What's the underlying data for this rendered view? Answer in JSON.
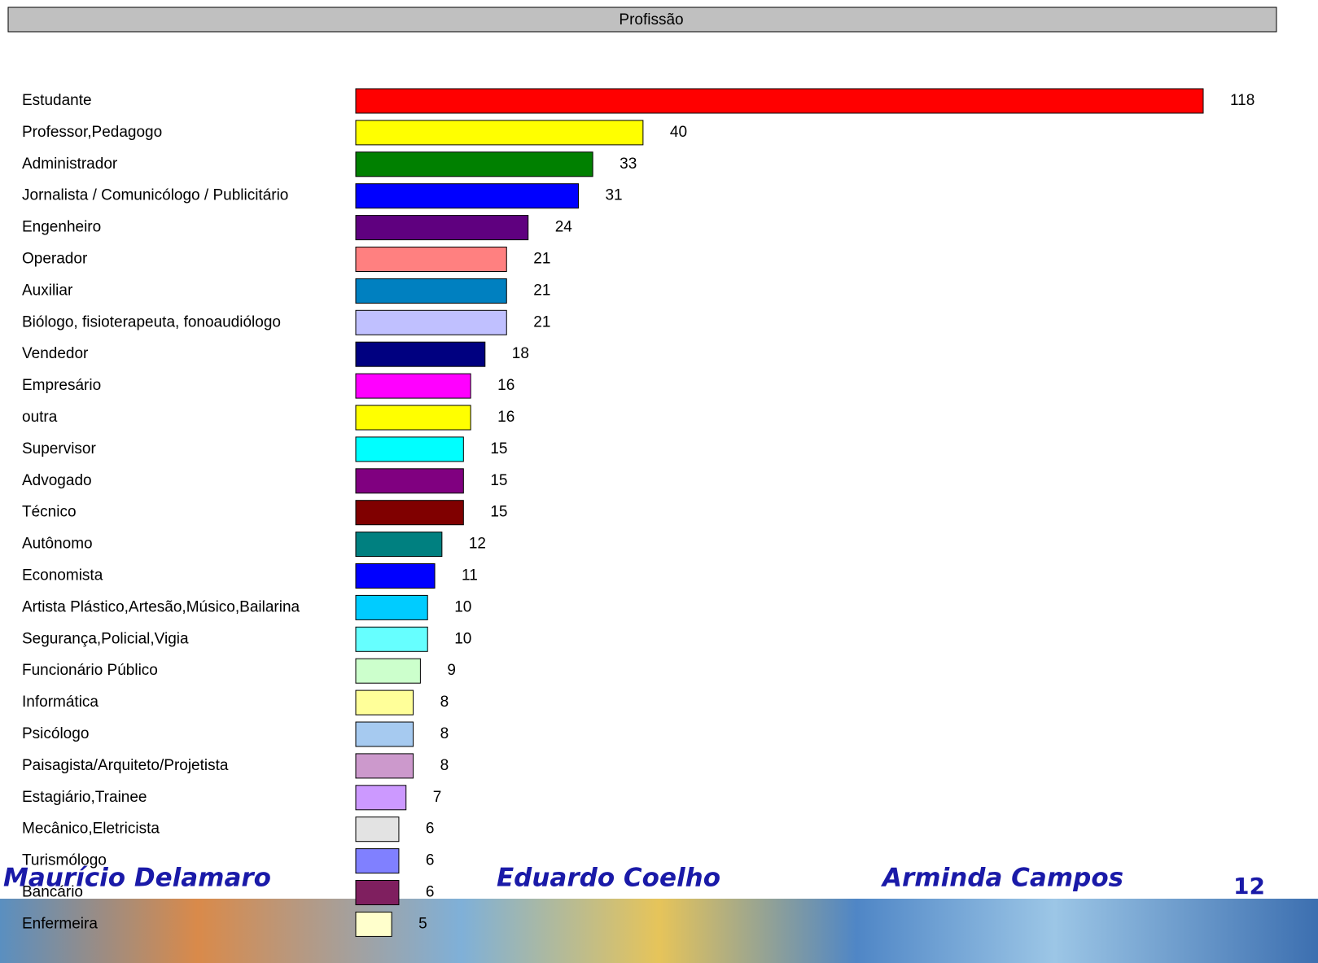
{
  "chart_data": {
    "type": "bar",
    "orientation": "horizontal",
    "title": "Profissão",
    "categories": [
      "Estudante",
      "Professor,Pedagogo",
      "Administrador",
      "Jornalista / Comunicólogo / Publicitário",
      "Engenheiro",
      "Operador",
      "Auxiliar",
      "Biólogo, fisioterapeuta, fonoaudiólogo",
      "Vendedor",
      "Empresário",
      "outra",
      "Supervisor",
      "Advogado",
      "Técnico",
      "Autônomo",
      "Economista",
      "Artista Plástico,Artesão,Músico,Bailarina",
      "Segurança,Policial,Vigia",
      "Funcionário Público",
      "Informática",
      "Psicólogo",
      "Paisagista/Arquiteto/Projetista",
      "Estagiário,Trainee",
      "Mecânico,Eletricista",
      "Turismólogo",
      "Bancário",
      "Enfermeira"
    ],
    "values": [
      118,
      40,
      33,
      31,
      24,
      21,
      21,
      21,
      18,
      16,
      16,
      15,
      15,
      15,
      12,
      11,
      10,
      10,
      9,
      8,
      8,
      8,
      7,
      6,
      6,
      6,
      5
    ],
    "colors": [
      "#ff0000",
      "#ffff00",
      "#008000",
      "#0000ff",
      "#5f007f",
      "#ff8080",
      "#0080c0",
      "#c0c0ff",
      "#000080",
      "#ff00ff",
      "#ffff00",
      "#00ffff",
      "#800080",
      "#800000",
      "#008080",
      "#0000ff",
      "#00ccff",
      "#66ffff",
      "#ccffcc",
      "#ffff99",
      "#a6caf0",
      "#cc99cc",
      "#cc99ff",
      "#e3e3e3",
      "#8080ff",
      "#7f1f5f",
      "#ffffcc"
    ]
  },
  "footer": {
    "authors": [
      "Maurício Delamaro",
      "Eduardo Coelho",
      "Arminda Campos"
    ],
    "page": "12"
  }
}
